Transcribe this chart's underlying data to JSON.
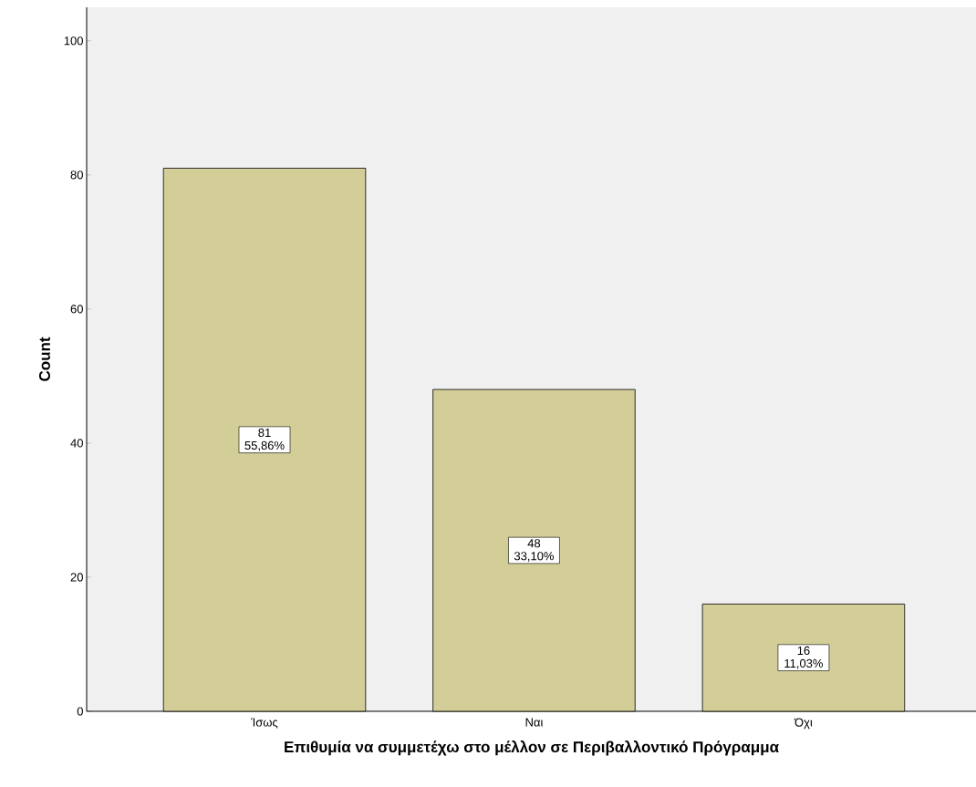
{
  "chart_data": {
    "type": "bar",
    "xlabel": "Επιθυμία να συμμετέχω στο μέλλον σε Περιβαλλοντικό Πρόγραμμα",
    "ylabel": "Count",
    "categories": [
      "Ίσως",
      "Ναι",
      "Όχι"
    ],
    "values": [
      81,
      48,
      16
    ],
    "value_labels": [
      "81 55,86%",
      "48 33,10%",
      "16 11,03%"
    ],
    "color": "#d3ce97",
    "ylim": [
      0,
      105
    ],
    "yticks": [
      0,
      20,
      40,
      60,
      80,
      100
    ]
  }
}
